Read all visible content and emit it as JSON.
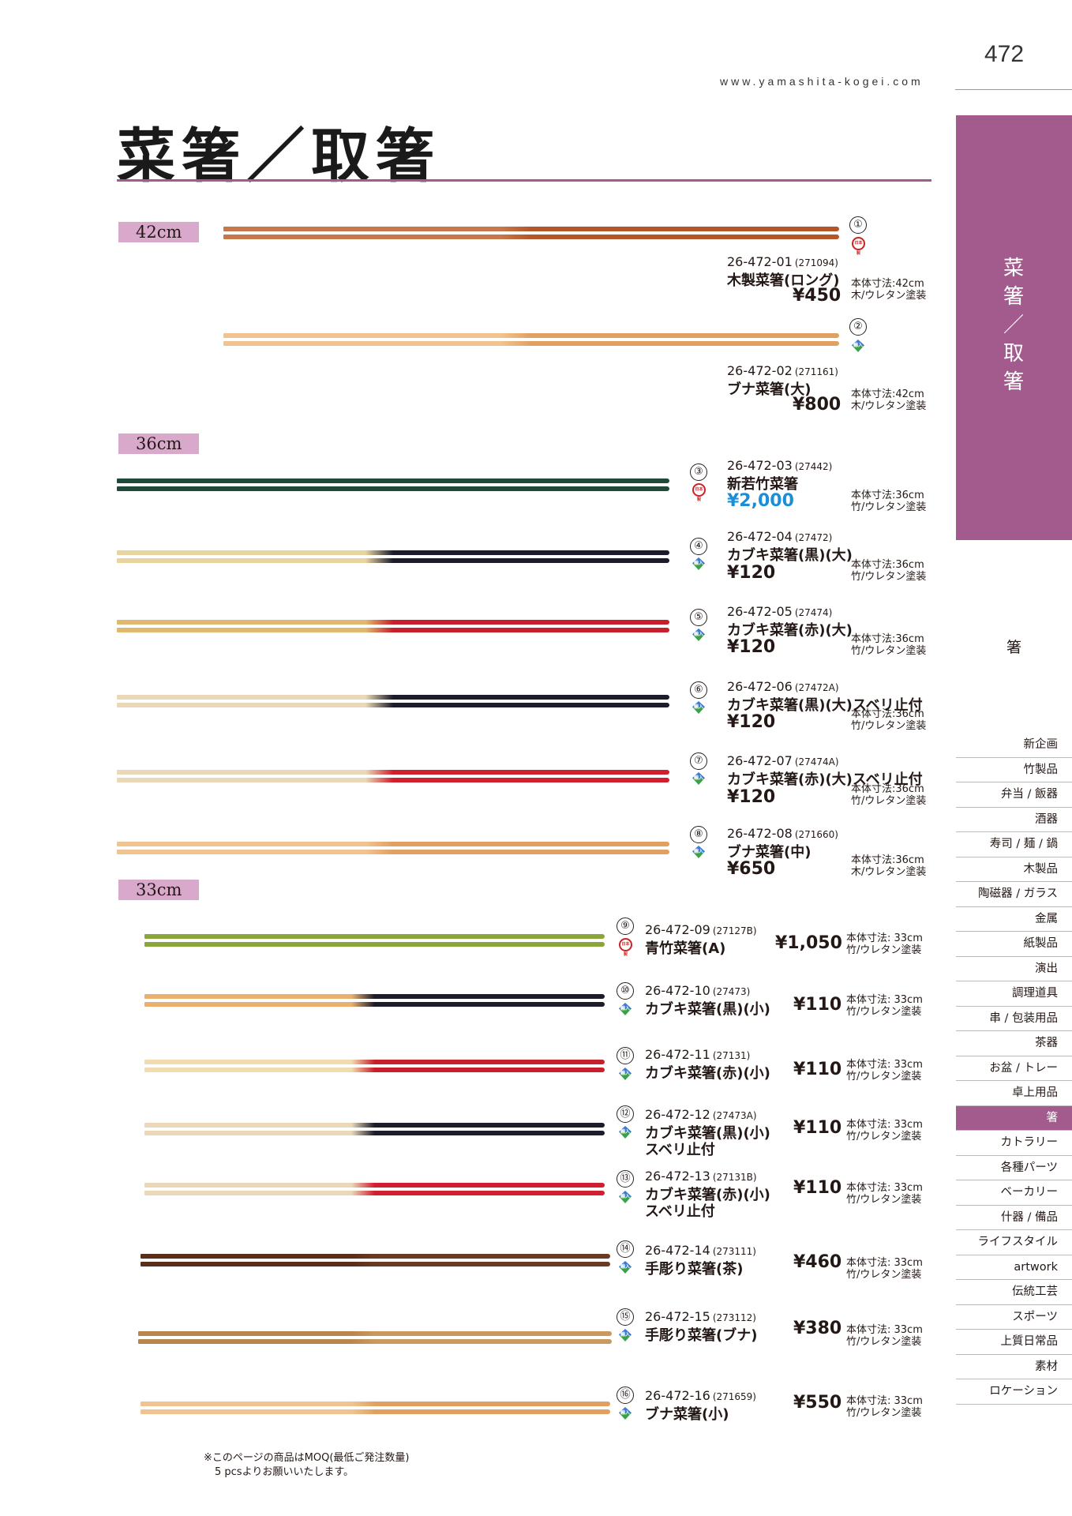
{
  "page_number": "472",
  "website": "www.yamashita-kogei.com",
  "title": "菜箸／取箸",
  "side_title": [
    "菜",
    "箸",
    "／",
    "取",
    "箸"
  ],
  "side_category": "箸",
  "menu": [
    "新企画",
    "竹製品",
    "弁当 / 飯器",
    "酒器",
    "寿司 / 麺 / 鍋",
    "木製品",
    "陶磁器 / ガラス",
    "金属",
    "紙製品",
    "演出",
    "調理道具",
    "串 / 包装用品",
    "茶器",
    "お盆 / トレー",
    "卓上用品",
    "箸",
    "カトラリー",
    "各種パーツ",
    "ベーカリー",
    "什器 / 備品",
    "ライフスタイル",
    "artwork",
    "伝統工芸",
    "スポーツ",
    "上質日常品",
    "素材",
    "ロケーション"
  ],
  "active_menu": "箸",
  "sections": [
    "42cm",
    "36cm",
    "33cm"
  ],
  "origin_marks": {
    "jp": "日本製",
    "cn": "輸入品",
    "vn": "輸入品"
  },
  "products": [
    {
      "num": "①",
      "code": "26-472-01",
      "ref": "(271094)",
      "name": "木製菜箸(ロング)",
      "price": "¥450",
      "size": "本体寸法:42cm",
      "material": "木/ウレタン塗装",
      "origin": "jp",
      "color": "#b5562a",
      "tip": "#c8774a"
    },
    {
      "num": "②",
      "code": "26-472-02",
      "ref": "(271161)",
      "name": "ブナ菜箸(大)",
      "price": "¥800",
      "size": "本体寸法:42cm",
      "material": "木/ウレタン塗装",
      "origin": "cn",
      "color": "#e0a060",
      "tip": "#f0c490"
    },
    {
      "num": "③",
      "code": "26-472-03",
      "ref": "(27442)",
      "name": "新若竹菜箸",
      "price": "¥2,000",
      "size": "本体寸法:36cm",
      "material": "竹/ウレタン塗装",
      "origin": "jp",
      "color": "#1f4a3a",
      "tip": "#1f4a3a"
    },
    {
      "num": "④",
      "code": "26-472-04",
      "ref": "(27472)",
      "name": "カブキ菜箸(黒)(大)",
      "price": "¥120",
      "size": "本体寸法:36cm",
      "material": "竹/ウレタン塗装",
      "origin": "cn",
      "color": "#1c1c2a",
      "tip": "#e8d4a0"
    },
    {
      "num": "⑤",
      "code": "26-472-05",
      "ref": "(27474)",
      "name": "カブキ菜箸(赤)(大)",
      "price": "¥120",
      "size": "本体寸法:36cm",
      "material": "竹/ウレタン塗装",
      "origin": "cn",
      "color": "#c8202a",
      "tip": "#e0b870"
    },
    {
      "num": "⑥",
      "code": "26-472-06",
      "ref": "(27472A)",
      "name": "カブキ菜箸(黒)(大)スベリ止付",
      "price": "¥120",
      "size": "本体寸法:36cm",
      "material": "竹/ウレタン塗装",
      "origin": "cn",
      "color": "#1c1c2a",
      "tip": "#ead8b8"
    },
    {
      "num": "⑦",
      "code": "26-472-07",
      "ref": "(27474A)",
      "name": "カブキ菜箸(赤)(大)スベリ止付",
      "price": "¥120",
      "size": "本体寸法:36cm",
      "material": "竹/ウレタン塗装",
      "origin": "cn",
      "color": "#d02030",
      "tip": "#ead8b8"
    },
    {
      "num": "⑧",
      "code": "26-472-08",
      "ref": "(271660)",
      "name": "ブナ菜箸(中)",
      "price": "¥650",
      "size": "本体寸法:36cm",
      "material": "木/ウレタン塗装",
      "origin": "cn",
      "color": "#e0a060",
      "tip": "#f0c490"
    },
    {
      "num": "⑨",
      "code": "26-472-09",
      "ref": "(27127B)",
      "name": "青竹菜箸(A)",
      "price": "¥1,050",
      "size": "本体寸法: 33cm",
      "material": "竹/ウレタン塗装",
      "origin": "jp",
      "color": "#8aa53a",
      "tip": "#8aa53a"
    },
    {
      "num": "⑩",
      "code": "26-472-10",
      "ref": "(27473)",
      "name": "カブキ菜箸(黒)(小)",
      "price": "¥110",
      "size": "本体寸法: 33cm",
      "material": "竹/ウレタン塗装",
      "origin": "cn",
      "color": "#1c1c2a",
      "tip": "#eab070"
    },
    {
      "num": "⑪",
      "code": "26-472-11",
      "ref": "(27131)",
      "name": "カブキ菜箸(赤)(小)",
      "price": "¥110",
      "size": "本体寸法: 33cm",
      "material": "竹/ウレタン塗装",
      "origin": "cn",
      "color": "#c8202a",
      "tip": "#f0dcb0"
    },
    {
      "num": "⑫",
      "code": "26-472-12",
      "ref": "(27473A)",
      "name": "カブキ菜箸(黒)(小)",
      "name2": "スベリ止付",
      "price": "¥110",
      "size": "本体寸法: 33cm",
      "material": "竹/ウレタン塗装",
      "origin": "cn",
      "color": "#1c1c2a",
      "tip": "#ead8b8"
    },
    {
      "num": "⑬",
      "code": "26-472-13",
      "ref": "(27131B)",
      "name": "カブキ菜箸(赤)(小)",
      "name2": "スベリ止付",
      "price": "¥110",
      "size": "本体寸法: 33cm",
      "material": "竹/ウレタン塗装",
      "origin": "cn",
      "color": "#d02030",
      "tip": "#ead8b8"
    },
    {
      "num": "⑭",
      "code": "26-472-14",
      "ref": "(273111)",
      "name": "手彫り菜箸(茶)",
      "price": "¥460",
      "size": "本体寸法: 33cm",
      "material": "竹/ウレタン塗装",
      "origin": "cn",
      "color": "#6b3a22",
      "tip": "#5a2e1a"
    },
    {
      "num": "⑮",
      "code": "26-472-15",
      "ref": "(273112)",
      "name": "手彫り菜箸(ブナ)",
      "price": "¥380",
      "size": "本体寸法: 33cm",
      "material": "竹/ウレタン塗装",
      "origin": "cn",
      "color": "#c89a60",
      "tip": "#b8864c"
    },
    {
      "num": "⑯",
      "code": "26-472-16",
      "ref": "(271659)",
      "name": "ブナ菜箸(小)",
      "price": "¥550",
      "size": "本体寸法: 33cm",
      "material": "竹/ウレタン塗装",
      "origin": "cn",
      "color": "#e0a060",
      "tip": "#f0c490"
    }
  ],
  "footnote": [
    "※このページの商品はMOQ(最低ご発注数量)",
    "5 pcsよりお願いいたします。"
  ]
}
